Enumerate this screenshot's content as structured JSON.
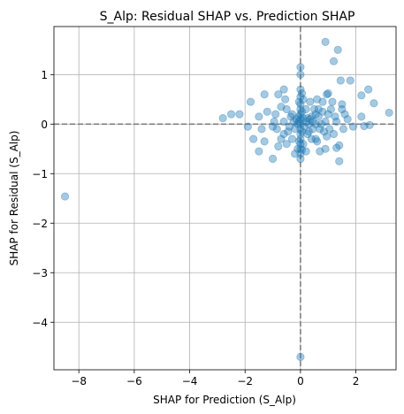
{
  "chart_data": {
    "type": "scatter",
    "title": "S_Alp: Residual SHAP vs. Prediction SHAP",
    "xlabel": "SHAP for Prediction (S_Alp)",
    "ylabel": "SHAP for Residual (S_Alp)",
    "xlim": [
      -8.9,
      3.45
    ],
    "ylim": [
      -4.96,
      1.97
    ],
    "xticks": [
      -8,
      -6,
      -4,
      -2,
      0,
      2
    ],
    "xtick_labels": [
      "−8",
      "−6",
      "−4",
      "−2",
      "0",
      "2"
    ],
    "yticks": [
      -4,
      -3,
      -2,
      -1,
      0,
      1
    ],
    "ytick_labels": [
      "−4",
      "−3",
      "−2",
      "−1",
      "0",
      "1"
    ],
    "grid": true,
    "reference_lines": {
      "x": 0,
      "y": 0,
      "style": "dashed",
      "color": "#808080"
    },
    "point_color": "#1f77b4",
    "point_alpha": 0.4,
    "points": [
      [
        -8.5,
        -1.46
      ],
      [
        0.0,
        -4.7
      ],
      [
        0.9,
        1.66
      ],
      [
        1.35,
        1.5
      ],
      [
        1.2,
        1.27
      ],
      [
        0.0,
        1.15
      ],
      [
        1.8,
        0.88
      ],
      [
        1.45,
        0.88
      ],
      [
        0.0,
        1.0
      ],
      [
        2.45,
        0.7
      ],
      [
        2.2,
        0.58
      ],
      [
        1.0,
        0.62
      ],
      [
        0.95,
        0.6
      ],
      [
        1.5,
        0.4
      ],
      [
        2.65,
        0.42
      ],
      [
        3.2,
        0.23
      ],
      [
        2.2,
        0.15
      ],
      [
        2.5,
        -0.02
      ],
      [
        2.3,
        -0.04
      ],
      [
        1.7,
        0.1
      ],
      [
        1.5,
        0.3
      ],
      [
        1.3,
        0.05
      ],
      [
        1.2,
        -0.2
      ],
      [
        1.3,
        -0.48
      ],
      [
        1.4,
        -0.43
      ],
      [
        1.4,
        -0.75
      ],
      [
        1.1,
        0.3
      ],
      [
        0.8,
        0.45
      ],
      [
        0.6,
        0.5
      ],
      [
        0.5,
        0.3
      ],
      [
        0.55,
        0.0
      ],
      [
        0.45,
        -0.1
      ],
      [
        0.6,
        -0.35
      ],
      [
        0.9,
        -0.5
      ],
      [
        0.4,
        -0.3
      ],
      [
        0.35,
        0.1
      ],
      [
        0.25,
        -0.2
      ],
      [
        0.2,
        0.3
      ],
      [
        -0.6,
        0.7
      ],
      [
        -0.8,
        0.6
      ],
      [
        -1.3,
        0.6
      ],
      [
        -1.8,
        0.45
      ],
      [
        -2.2,
        0.2
      ],
      [
        -2.5,
        0.2
      ],
      [
        -2.8,
        0.12
      ],
      [
        -1.9,
        -0.05
      ],
      [
        -1.5,
        0.15
      ],
      [
        -1.2,
        0.25
      ],
      [
        -0.9,
        0.2
      ],
      [
        -0.7,
        0.35
      ],
      [
        -0.5,
        0.3
      ],
      [
        -0.3,
        0.2
      ],
      [
        -0.6,
        0.05
      ],
      [
        -1.0,
        -0.05
      ],
      [
        -1.4,
        -0.1
      ],
      [
        -1.3,
        -0.35
      ],
      [
        -1.5,
        -0.55
      ],
      [
        -1.7,
        -0.3
      ],
      [
        -1.0,
        -0.7
      ],
      [
        -0.8,
        -0.45
      ],
      [
        -0.5,
        -0.4
      ],
      [
        -0.6,
        -0.2
      ],
      [
        -0.4,
        -0.05
      ],
      [
        -0.3,
        -0.3
      ],
      [
        -0.2,
        -0.6
      ],
      [
        -0.1,
        -0.5
      ],
      [
        0.1,
        -0.4
      ],
      [
        0.2,
        -0.55
      ],
      [
        0.1,
        0.5
      ],
      [
        0.0,
        0.7
      ],
      [
        0.0,
        0.55
      ],
      [
        0.0,
        0.4
      ],
      [
        0.0,
        0.3
      ],
      [
        0.0,
        0.2
      ],
      [
        0.0,
        0.1
      ],
      [
        0.0,
        0.0
      ],
      [
        0.0,
        -0.1
      ],
      [
        0.0,
        -0.2
      ],
      [
        0.0,
        -0.3
      ],
      [
        0.0,
        -0.4
      ],
      [
        0.0,
        -0.5
      ],
      [
        0.0,
        -0.6
      ],
      [
        0.0,
        -0.7
      ],
      [
        0.05,
        0.62
      ],
      [
        -0.05,
        0.45
      ],
      [
        0.05,
        0.25
      ],
      [
        -0.05,
        0.05
      ],
      [
        0.05,
        -0.15
      ],
      [
        -0.05,
        -0.35
      ],
      [
        0.05,
        -0.52
      ],
      [
        -0.05,
        0.15
      ],
      [
        0.1,
        0.12
      ],
      [
        -0.1,
        0.0
      ],
      [
        0.15,
        -0.05
      ],
      [
        -0.15,
        0.1
      ],
      [
        0.3,
        0.0
      ],
      [
        -0.25,
        0.05
      ],
      [
        0.4,
        0.15
      ],
      [
        -0.35,
        0.15
      ],
      [
        0.65,
        0.15
      ],
      [
        0.75,
        0.0
      ],
      [
        0.9,
        0.05
      ],
      [
        1.0,
        0.2
      ],
      [
        1.05,
        -0.1
      ],
      [
        0.85,
        -0.15
      ],
      [
        0.7,
        -0.1
      ],
      [
        0.55,
        0.2
      ],
      [
        0.3,
        -0.15
      ],
      [
        0.45,
        0.05
      ],
      [
        -0.2,
        -0.1
      ],
      [
        -0.45,
        -0.15
      ],
      [
        -0.7,
        -0.3
      ],
      [
        -0.95,
        0.05
      ],
      [
        0.65,
        0.3
      ],
      [
        0.8,
        0.25
      ],
      [
        1.15,
        0.45
      ],
      [
        1.6,
        0.2
      ],
      [
        1.9,
        -0.05
      ],
      [
        0.25,
        0.12
      ],
      [
        -0.55,
        0.5
      ],
      [
        0.7,
        -0.55
      ],
      [
        0.55,
        -0.3
      ],
      [
        1.25,
        0.15
      ],
      [
        0.35,
        0.45
      ],
      [
        -0.85,
        -0.1
      ],
      [
        0.2,
        0.05
      ],
      [
        0.95,
        -0.25
      ],
      [
        1.55,
        -0.1
      ]
    ]
  }
}
